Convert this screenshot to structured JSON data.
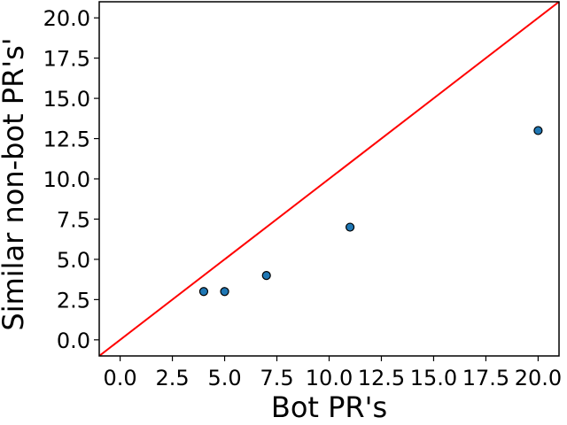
{
  "chart_data": {
    "type": "scatter",
    "title": "",
    "xlabel": "Bot PR's",
    "ylabel": "Similar non-bot PR's'",
    "xlim": [
      -1.0,
      21.0
    ],
    "ylim": [
      -1.0,
      21.0
    ],
    "xticks": [
      "0.0",
      "2.5",
      "5.0",
      "7.5",
      "10.0",
      "12.5",
      "15.0",
      "17.5",
      "20.0"
    ],
    "yticks": [
      "0.0",
      "2.5",
      "5.0",
      "7.5",
      "10.0",
      "12.5",
      "15.0",
      "17.5",
      "20.0"
    ],
    "x": [
      4,
      5,
      7,
      11,
      20
    ],
    "y": [
      3,
      3,
      4,
      7,
      13
    ],
    "reference_line": {
      "type": "y=x",
      "color": "#ff0000"
    },
    "point_color": "#1f77b4",
    "grid": false,
    "legend": "none"
  }
}
